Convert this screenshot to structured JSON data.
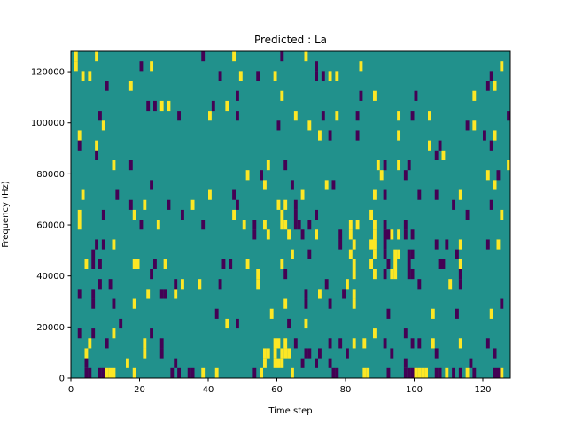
{
  "chart_data": {
    "type": "heatmap",
    "title": "Predicted : La",
    "xlabel": "Time step",
    "ylabel": "Frequency (Hz)",
    "xlim": [
      0,
      128
    ],
    "ylim": [
      0,
      128000
    ],
    "xticks": [
      0,
      20,
      40,
      60,
      80,
      100,
      120
    ],
    "xtick_labels": [
      "0",
      "20",
      "40",
      "60",
      "80",
      "100",
      "120"
    ],
    "yticks": [
      0,
      20000,
      40000,
      60000,
      80000,
      100000,
      120000
    ],
    "ytick_labels": [
      "0",
      "20000",
      "40000",
      "60000",
      "80000",
      "100000",
      "120000"
    ],
    "n_time_steps": 128,
    "n_frequency_bins": 33,
    "cell_encoding": "[time_step, bin_index_from_top]",
    "colors": {
      "background": "#21918c",
      "high": "#fde725",
      "low": "#440154"
    },
    "background_value": 0,
    "high_value": 1,
    "low_value": -1,
    "high_cells": [
      [
        1,
        0
      ],
      [
        7,
        0
      ],
      [
        47,
        0
      ],
      [
        68,
        0
      ],
      [
        1,
        1
      ],
      [
        23,
        1
      ],
      [
        84,
        1
      ],
      [
        125,
        1
      ],
      [
        3,
        2
      ],
      [
        5,
        2
      ],
      [
        49,
        2
      ],
      [
        59,
        2
      ],
      [
        75,
        2
      ],
      [
        77,
        2
      ],
      [
        17,
        3
      ],
      [
        123,
        3
      ],
      [
        61,
        4
      ],
      [
        88,
        4
      ],
      [
        117,
        4
      ],
      [
        26,
        5
      ],
      [
        28,
        5
      ],
      [
        45,
        5
      ],
      [
        40,
        6
      ],
      [
        65,
        6
      ],
      [
        77,
        6
      ],
      [
        95,
        6
      ],
      [
        104,
        6
      ],
      [
        9,
        7
      ],
      [
        69,
        7
      ],
      [
        117,
        7
      ],
      [
        2,
        8
      ],
      [
        72,
        8
      ],
      [
        95,
        8
      ],
      [
        123,
        8
      ],
      [
        7,
        9
      ],
      [
        104,
        9
      ],
      [
        108,
        10
      ],
      [
        12,
        11
      ],
      [
        57,
        11
      ],
      [
        89,
        11
      ],
      [
        95,
        11
      ],
      [
        127,
        11
      ],
      [
        51,
        12
      ],
      [
        90,
        12
      ],
      [
        121,
        12
      ],
      [
        56,
        13
      ],
      [
        74,
        13
      ],
      [
        123,
        13
      ],
      [
        3,
        14
      ],
      [
        40,
        14
      ],
      [
        67,
        14
      ],
      [
        88,
        14
      ],
      [
        113,
        14
      ],
      [
        21,
        15
      ],
      [
        35,
        15
      ],
      [
        60,
        15
      ],
      [
        62,
        15
      ],
      [
        2,
        16
      ],
      [
        18,
        16
      ],
      [
        47,
        16
      ],
      [
        61,
        16
      ],
      [
        87,
        16
      ],
      [
        125,
        16
      ],
      [
        2,
        17
      ],
      [
        25,
        17
      ],
      [
        50,
        17
      ],
      [
        56,
        17
      ],
      [
        61,
        17
      ],
      [
        62,
        17
      ],
      [
        81,
        17
      ],
      [
        83,
        17
      ],
      [
        88,
        17
      ],
      [
        57,
        18
      ],
      [
        63,
        18
      ],
      [
        71,
        18
      ],
      [
        81,
        18
      ],
      [
        88,
        18
      ],
      [
        93,
        18
      ],
      [
        95,
        18
      ],
      [
        12,
        19
      ],
      [
        82,
        19
      ],
      [
        87,
        19
      ],
      [
        88,
        19
      ],
      [
        113,
        19
      ],
      [
        124,
        19
      ],
      [
        64,
        20
      ],
      [
        81,
        20
      ],
      [
        88,
        20
      ],
      [
        94,
        20
      ],
      [
        95,
        20
      ],
      [
        4,
        21
      ],
      [
        18,
        21
      ],
      [
        19,
        21
      ],
      [
        27,
        21
      ],
      [
        51,
        21
      ],
      [
        61,
        21
      ],
      [
        82,
        21
      ],
      [
        87,
        21
      ],
      [
        94,
        21
      ],
      [
        113,
        21
      ],
      [
        54,
        22
      ],
      [
        82,
        22
      ],
      [
        88,
        22
      ],
      [
        93,
        22
      ],
      [
        94,
        22
      ],
      [
        32,
        23
      ],
      [
        37,
        23
      ],
      [
        54,
        23
      ],
      [
        80,
        23
      ],
      [
        110,
        23
      ],
      [
        22,
        24
      ],
      [
        30,
        24
      ],
      [
        72,
        24
      ],
      [
        82,
        24
      ],
      [
        18,
        25
      ],
      [
        62,
        25
      ],
      [
        82,
        25
      ],
      [
        58,
        26
      ],
      [
        105,
        26
      ],
      [
        122,
        26
      ],
      [
        45,
        27
      ],
      [
        68,
        27
      ],
      [
        12,
        28
      ],
      [
        88,
        28
      ],
      [
        5,
        29
      ],
      [
        21,
        29
      ],
      [
        59,
        29
      ],
      [
        60,
        29
      ],
      [
        62,
        29
      ],
      [
        82,
        29
      ],
      [
        85,
        29
      ],
      [
        105,
        29
      ],
      [
        113,
        29
      ],
      [
        4,
        30
      ],
      [
        21,
        30
      ],
      [
        56,
        30
      ],
      [
        57,
        30
      ],
      [
        59,
        30
      ],
      [
        61,
        30
      ],
      [
        62,
        30
      ],
      [
        63,
        30
      ],
      [
        16,
        31
      ],
      [
        56,
        31
      ],
      [
        59,
        31
      ],
      [
        60,
        31
      ],
      [
        61,
        31
      ],
      [
        10,
        32
      ],
      [
        11,
        32
      ],
      [
        12,
        32
      ],
      [
        18,
        32
      ],
      [
        38,
        32
      ],
      [
        42,
        32
      ],
      [
        55,
        32
      ],
      [
        64,
        32
      ],
      [
        85,
        32
      ],
      [
        86,
        32
      ],
      [
        100,
        32
      ],
      [
        101,
        32
      ],
      [
        102,
        32
      ],
      [
        103,
        32
      ],
      [
        109,
        32
      ],
      [
        115,
        32
      ],
      [
        125,
        32
      ]
    ],
    "low_cells": [
      [
        38,
        0
      ],
      [
        61,
        0
      ],
      [
        20,
        1
      ],
      [
        71,
        1
      ],
      [
        43,
        2
      ],
      [
        54,
        2
      ],
      [
        71,
        2
      ],
      [
        73,
        2
      ],
      [
        122,
        2
      ],
      [
        10,
        3
      ],
      [
        121,
        3
      ],
      [
        48,
        4
      ],
      [
        84,
        4
      ],
      [
        100,
        4
      ],
      [
        22,
        5
      ],
      [
        24,
        5
      ],
      [
        41,
        5
      ],
      [
        8,
        6
      ],
      [
        31,
        6
      ],
      [
        48,
        6
      ],
      [
        73,
        6
      ],
      [
        83,
        6
      ],
      [
        99,
        6
      ],
      [
        127,
        6
      ],
      [
        60,
        7
      ],
      [
        115,
        7
      ],
      [
        75,
        8
      ],
      [
        83,
        8
      ],
      [
        120,
        8
      ],
      [
        2,
        9
      ],
      [
        107,
        9
      ],
      [
        122,
        9
      ],
      [
        7,
        10
      ],
      [
        106,
        10
      ],
      [
        17,
        11
      ],
      [
        62,
        11
      ],
      [
        91,
        11
      ],
      [
        98,
        11
      ],
      [
        55,
        12
      ],
      [
        97,
        12
      ],
      [
        124,
        12
      ],
      [
        23,
        13
      ],
      [
        64,
        13
      ],
      [
        76,
        13
      ],
      [
        13,
        14
      ],
      [
        47,
        14
      ],
      [
        91,
        14
      ],
      [
        101,
        14
      ],
      [
        106,
        14
      ],
      [
        17,
        15
      ],
      [
        28,
        15
      ],
      [
        48,
        15
      ],
      [
        65,
        15
      ],
      [
        111,
        15
      ],
      [
        122,
        15
      ],
      [
        9,
        16
      ],
      [
        32,
        16
      ],
      [
        65,
        16
      ],
      [
        71,
        16
      ],
      [
        115,
        16
      ],
      [
        20,
        17
      ],
      [
        38,
        17
      ],
      [
        53,
        17
      ],
      [
        65,
        17
      ],
      [
        66,
        17
      ],
      [
        69,
        17
      ],
      [
        91,
        17
      ],
      [
        97,
        17
      ],
      [
        53,
        18
      ],
      [
        67,
        18
      ],
      [
        78,
        18
      ],
      [
        91,
        18
      ],
      [
        92,
        18
      ],
      [
        97,
        18
      ],
      [
        99,
        18
      ],
      [
        7,
        19
      ],
      [
        9,
        19
      ],
      [
        78,
        19
      ],
      [
        91,
        19
      ],
      [
        106,
        19
      ],
      [
        109,
        19
      ],
      [
        121,
        19
      ],
      [
        6,
        20
      ],
      [
        69,
        20
      ],
      [
        91,
        20
      ],
      [
        98,
        20
      ],
      [
        99,
        20
      ],
      [
        112,
        20
      ],
      [
        6,
        21
      ],
      [
        8,
        21
      ],
      [
        24,
        21
      ],
      [
        44,
        21
      ],
      [
        46,
        21
      ],
      [
        92,
        21
      ],
      [
        98,
        21
      ],
      [
        107,
        21
      ],
      [
        108,
        21
      ],
      [
        23,
        22
      ],
      [
        62,
        22
      ],
      [
        91,
        22
      ],
      [
        98,
        22
      ],
      [
        99,
        22
      ],
      [
        113,
        22
      ],
      [
        8,
        23
      ],
      [
        11,
        23
      ],
      [
        30,
        23
      ],
      [
        43,
        23
      ],
      [
        74,
        23
      ],
      [
        101,
        23
      ],
      [
        113,
        23
      ],
      [
        2,
        24
      ],
      [
        6,
        24
      ],
      [
        26,
        24
      ],
      [
        27,
        24
      ],
      [
        68,
        24
      ],
      [
        79,
        24
      ],
      [
        6,
        25
      ],
      [
        12,
        25
      ],
      [
        68,
        25
      ],
      [
        75,
        25
      ],
      [
        125,
        25
      ],
      [
        42,
        26
      ],
      [
        92,
        26
      ],
      [
        112,
        26
      ],
      [
        14,
        27
      ],
      [
        48,
        27
      ],
      [
        63,
        27
      ],
      [
        2,
        28
      ],
      [
        6,
        28
      ],
      [
        23,
        28
      ],
      [
        97,
        28
      ],
      [
        10,
        29
      ],
      [
        26,
        29
      ],
      [
        65,
        29
      ],
      [
        75,
        29
      ],
      [
        78,
        29
      ],
      [
        91,
        29
      ],
      [
        99,
        29
      ],
      [
        101,
        29
      ],
      [
        121,
        29
      ],
      [
        26,
        30
      ],
      [
        68,
        30
      ],
      [
        69,
        30
      ],
      [
        72,
        30
      ],
      [
        80,
        30
      ],
      [
        93,
        30
      ],
      [
        106,
        30
      ],
      [
        123,
        30
      ],
      [
        4,
        31
      ],
      [
        30,
        31
      ],
      [
        67,
        31
      ],
      [
        71,
        31
      ],
      [
        75,
        31
      ],
      [
        97,
        31
      ],
      [
        116,
        31
      ],
      [
        4,
        32
      ],
      [
        5,
        32
      ],
      [
        8,
        32
      ],
      [
        9,
        32
      ],
      [
        29,
        32
      ],
      [
        31,
        32
      ],
      [
        34,
        32
      ],
      [
        35,
        32
      ],
      [
        53,
        32
      ],
      [
        76,
        32
      ],
      [
        77,
        32
      ],
      [
        92,
        32
      ],
      [
        97,
        32
      ],
      [
        98,
        32
      ],
      [
        99,
        32
      ],
      [
        106,
        32
      ],
      [
        107,
        32
      ],
      [
        111,
        32
      ],
      [
        113,
        32
      ],
      [
        117,
        32
      ],
      [
        123,
        32
      ],
      [
        124,
        32
      ]
    ]
  }
}
